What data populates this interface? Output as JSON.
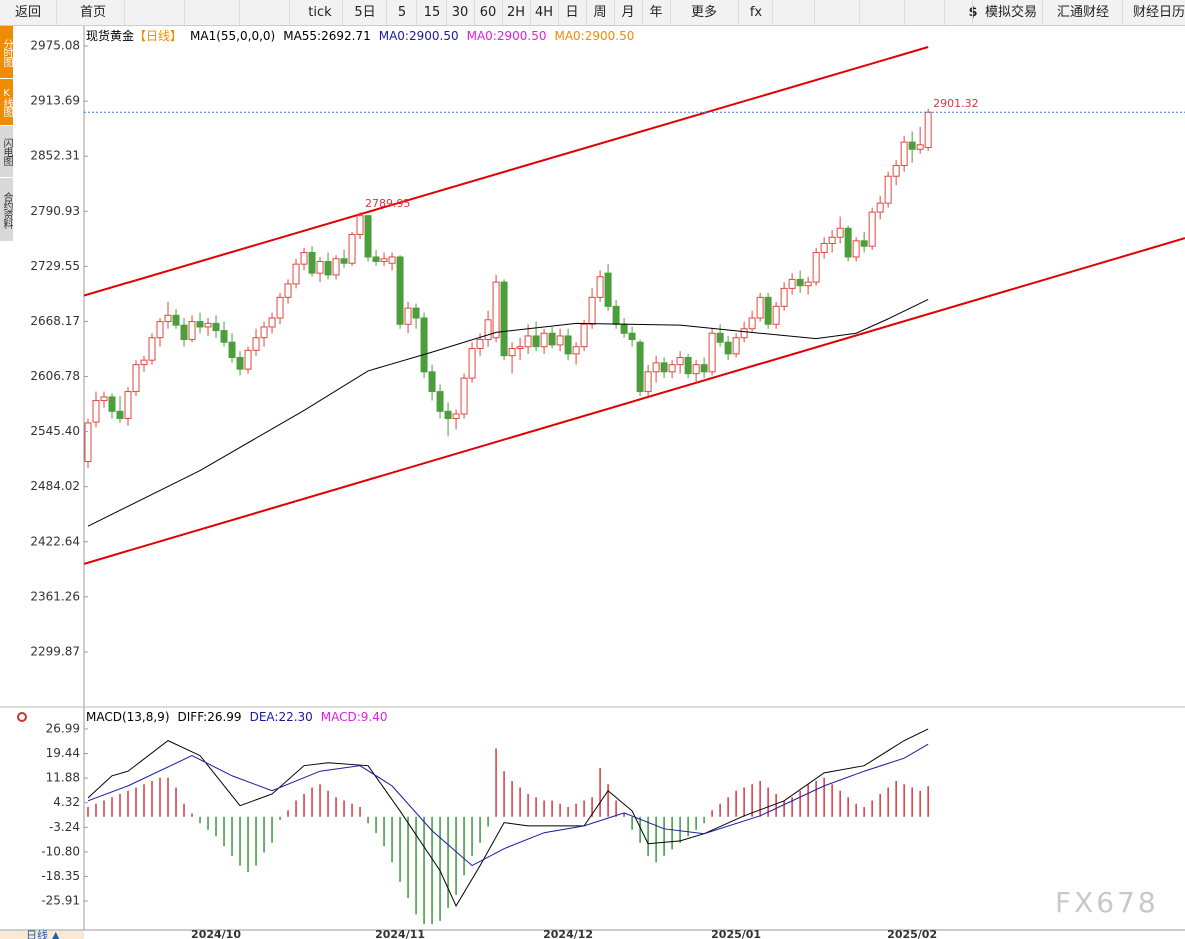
{
  "toolbar": [
    "返回",
    "首页",
    "tick",
    "5日",
    "5",
    "15",
    "30",
    "60",
    "2H",
    "4H",
    "日",
    "周",
    "月",
    "年",
    "更多",
    "fx",
    "$",
    "模拟交易",
    "汇通财经",
    "财经日历"
  ],
  "sidebar": [
    "分时图",
    "K线图",
    "闪电图",
    "合约资料"
  ],
  "footer": {
    "period": "日线 ▲"
  },
  "watermark": "FX678",
  "chart_data": [
    {
      "type": "candlestick",
      "title": "现货黄金",
      "period": "【日线】",
      "legend": [
        {
          "text": "MA1(55,0,0,0)",
          "color": "#000000"
        },
        {
          "text": "MA55:2692.71",
          "color": "#000000"
        },
        {
          "text": "MA0:2900.50",
          "color": "#1a1aa0"
        },
        {
          "text": "MA0:2900.50",
          "color": "#e020e0"
        },
        {
          "text": "MA0:2900.50",
          "color": "#f08c00"
        }
      ],
      "colors": {
        "up": "#e0473f",
        "down": "#4c9e3c"
      },
      "xlim": [
        -0.5,
        137.1
      ],
      "xticks": [
        {
          "value": 16,
          "label": "2024/10"
        },
        {
          "value": 39,
          "label": "2024/11"
        },
        {
          "value": 60,
          "label": "2024/12"
        },
        {
          "value": 81,
          "label": "2025/01"
        },
        {
          "value": 103,
          "label": "2025/02"
        }
      ],
      "ylim": [
        2239.6,
        2997.4
      ],
      "yticks": [
        2975.08,
        2913.69,
        2852.31,
        2790.93,
        2729.55,
        2668.17,
        2606.78,
        {
          "value": 2545.4,
          "label": "2545.40"
        },
        2484.02,
        2422.64,
        2361.26,
        2299.87
      ],
      "ohlc": [
        [
          2512,
          2560,
          2505,
          2555
        ],
        [
          2556,
          2590,
          2550,
          2580
        ],
        [
          2580,
          2590,
          2572,
          2584
        ],
        [
          2584,
          2588,
          2560,
          2568
        ],
        [
          2568,
          2585,
          2555,
          2560
        ],
        [
          2560,
          2595,
          2552,
          2590
        ],
        [
          2590,
          2625,
          2585,
          2620
        ],
        [
          2620,
          2630,
          2612,
          2625
        ],
        [
          2625,
          2655,
          2620,
          2650
        ],
        [
          2650,
          2672,
          2640,
          2668
        ],
        [
          2668,
          2690,
          2660,
          2675
        ],
        [
          2675,
          2682,
          2660,
          2664
        ],
        [
          2664,
          2672,
          2640,
          2648
        ],
        [
          2648,
          2675,
          2645,
          2668
        ],
        [
          2668,
          2678,
          2655,
          2662
        ],
        [
          2662,
          2672,
          2652,
          2666
        ],
        [
          2666,
          2675,
          2650,
          2658
        ],
        [
          2658,
          2668,
          2640,
          2645
        ],
        [
          2645,
          2655,
          2622,
          2628
        ],
        [
          2628,
          2635,
          2608,
          2615
        ],
        [
          2615,
          2640,
          2610,
          2636
        ],
        [
          2636,
          2660,
          2630,
          2650
        ],
        [
          2650,
          2668,
          2640,
          2662
        ],
        [
          2662,
          2678,
          2655,
          2672
        ],
        [
          2672,
          2700,
          2665,
          2695
        ],
        [
          2695,
          2715,
          2688,
          2710
        ],
        [
          2710,
          2738,
          2705,
          2732
        ],
        [
          2732,
          2750,
          2725,
          2745
        ],
        [
          2745,
          2752,
          2718,
          2722
        ],
        [
          2722,
          2740,
          2712,
          2735
        ],
        [
          2735,
          2745,
          2715,
          2720
        ],
        [
          2720,
          2742,
          2715,
          2738
        ],
        [
          2738,
          2748,
          2728,
          2733
        ],
        [
          2733,
          2768,
          2730,
          2765
        ],
        [
          2765,
          2789.95,
          2760,
          2786
        ],
        [
          2786,
          2787,
          2735,
          2740
        ],
        [
          2740,
          2748,
          2730,
          2735
        ],
        [
          2735,
          2745,
          2730,
          2738
        ],
        [
          2733,
          2745,
          2725,
          2740
        ],
        [
          2740,
          2742,
          2660,
          2665
        ],
        [
          2665,
          2690,
          2655,
          2683
        ],
        [
          2683,
          2688,
          2660,
          2672
        ],
        [
          2672,
          2678,
          2605,
          2612
        ],
        [
          2612,
          2620,
          2580,
          2590
        ],
        [
          2590,
          2598,
          2560,
          2568
        ],
        [
          2568,
          2578,
          2540,
          2560
        ],
        [
          2560,
          2570,
          2548,
          2565
        ],
        [
          2565,
          2610,
          2560,
          2605
        ],
        [
          2605,
          2645,
          2600,
          2638
        ],
        [
          2638,
          2655,
          2630,
          2648
        ],
        [
          2648,
          2680,
          2640,
          2670
        ],
        [
          2650,
          2720,
          2645,
          2712
        ],
        [
          2712,
          2715,
          2625,
          2630
        ],
        [
          2630,
          2645,
          2610,
          2638
        ],
        [
          2638,
          2650,
          2625,
          2640
        ],
        [
          2640,
          2665,
          2632,
          2652
        ],
        [
          2652,
          2668,
          2635,
          2640
        ],
        [
          2640,
          2660,
          2632,
          2655
        ],
        [
          2655,
          2662,
          2638,
          2642
        ],
        [
          2642,
          2660,
          2635,
          2652
        ],
        [
          2652,
          2660,
          2625,
          2632
        ],
        [
          2632,
          2645,
          2620,
          2640
        ],
        [
          2640,
          2670,
          2635,
          2665
        ],
        [
          2665,
          2705,
          2660,
          2695
        ],
        [
          2695,
          2725,
          2690,
          2718
        ],
        [
          2722,
          2732,
          2680,
          2685
        ],
        [
          2685,
          2692,
          2660,
          2665
        ],
        [
          2665,
          2672,
          2650,
          2655
        ],
        [
          2655,
          2662,
          2640,
          2648
        ],
        [
          2645,
          2648,
          2585,
          2590
        ],
        [
          2590,
          2620,
          2585,
          2612
        ],
        [
          2612,
          2630,
          2600,
          2622
        ],
        [
          2622,
          2628,
          2605,
          2612
        ],
        [
          2612,
          2625,
          2605,
          2620
        ],
        [
          2620,
          2635,
          2610,
          2628
        ],
        [
          2628,
          2632,
          2605,
          2610
        ],
        [
          2610,
          2625,
          2600,
          2620
        ],
        [
          2620,
          2628,
          2605,
          2612
        ],
        [
          2612,
          2660,
          2608,
          2655
        ],
        [
          2655,
          2665,
          2640,
          2645
        ],
        [
          2645,
          2652,
          2625,
          2632
        ],
        [
          2632,
          2655,
          2628,
          2650
        ],
        [
          2650,
          2668,
          2645,
          2660
        ],
        [
          2660,
          2680,
          2655,
          2672
        ],
        [
          2672,
          2700,
          2668,
          2695
        ],
        [
          2695,
          2700,
          2660,
          2665
        ],
        [
          2665,
          2690,
          2660,
          2685
        ],
        [
          2685,
          2712,
          2680,
          2705
        ],
        [
          2705,
          2722,
          2698,
          2715
        ],
        [
          2715,
          2725,
          2700,
          2708
        ],
        [
          2708,
          2718,
          2698,
          2712
        ],
        [
          2712,
          2750,
          2708,
          2745
        ],
        [
          2745,
          2762,
          2738,
          2755
        ],
        [
          2755,
          2770,
          2745,
          2762
        ],
        [
          2762,
          2785,
          2755,
          2772
        ],
        [
          2772,
          2775,
          2735,
          2740
        ],
        [
          2740,
          2762,
          2735,
          2758
        ],
        [
          2758,
          2768,
          2745,
          2752
        ],
        [
          2752,
          2795,
          2748,
          2790
        ],
        [
          2790,
          2808,
          2782,
          2800
        ],
        [
          2800,
          2835,
          2795,
          2830
        ],
        [
          2830,
          2848,
          2820,
          2842
        ],
        [
          2842,
          2875,
          2835,
          2868
        ],
        [
          2868,
          2880,
          2845,
          2860
        ],
        [
          2860,
          2885,
          2855,
          2865
        ],
        [
          2862,
          2905,
          2858,
          2901.32
        ]
      ],
      "lines": [
        {
          "color": "#000000",
          "x": [
            0,
            14,
            27,
            35,
            43,
            51,
            61,
            74,
            84,
            91,
            96,
            100,
            105
          ],
          "values": [
            2440,
            2502,
            2569,
            2613,
            2634,
            2656,
            2666,
            2664,
            2655,
            2649,
            2655,
            2671,
            2692.71
          ]
        }
      ],
      "trendlines": [
        {
          "color": "#e00000",
          "x": [
            -0.5,
            105
          ],
          "values": [
            2697,
            2974
          ]
        },
        {
          "color": "#e00000",
          "x": [
            -0.5,
            137.1
          ],
          "values": [
            2398,
            2761
          ]
        }
      ],
      "annotations": [
        {
          "index": 34,
          "value": 2789.95
        },
        {
          "index": 105,
          "value": 2901.32
        }
      ]
    },
    {
      "type": "macd",
      "title": "MACD(13,8,9)",
      "legend": [
        {
          "text": "DIFF:26.99",
          "color": "#000000"
        },
        {
          "text": "DEA:22.30",
          "color": "#1a1aa0"
        },
        {
          "text": "MACD:9.40",
          "color": "#e020e0"
        }
      ],
      "colors": {
        "up": "#d9363e",
        "down": "#3a9a3a"
      },
      "ylim": [
        -34.8,
        32.2
      ],
      "yticks": [
        26.99,
        19.44,
        11.88,
        4.32,
        -3.24,
        {
          "value": -10.8,
          "label": "-10.80"
        },
        -18.35,
        -25.91
      ],
      "histogram": [
        3,
        4,
        5,
        6,
        7,
        8,
        9,
        10,
        11,
        12,
        12,
        9,
        4,
        1,
        -2,
        -4,
        -6,
        -9,
        -12,
        -15,
        -17,
        -15,
        -11,
        -8,
        -1,
        2,
        5,
        7,
        9,
        10,
        8,
        6,
        5,
        4,
        3,
        -2,
        -5,
        -9,
        -14,
        -20,
        -25,
        -30,
        -33,
        -33,
        -32,
        -28,
        -24,
        -18,
        -12,
        -8,
        -3,
        21,
        14,
        11,
        9,
        7,
        6,
        5,
        5,
        4,
        3,
        4,
        5,
        6,
        15,
        10,
        5,
        1,
        -4,
        -8,
        -12,
        -14,
        -12,
        -10,
        -8,
        -6,
        -4,
        -2,
        2,
        4,
        6,
        8,
        9,
        10,
        11,
        9,
        7,
        5,
        6,
        8,
        10,
        11,
        12,
        10,
        8,
        6,
        4,
        3,
        5,
        7,
        9,
        11,
        10,
        9,
        8,
        9.4
      ],
      "lines": [
        {
          "color": "#000000",
          "x": [
            0,
            3,
            5,
            10,
            14,
            19,
            23,
            27,
            30,
            35,
            39,
            44,
            46,
            49,
            52,
            55,
            62,
            65,
            68,
            70,
            74,
            77,
            82,
            87,
            92,
            97,
            102,
            105
          ],
          "values": [
            5.8,
            12.6,
            14,
            23.4,
            18.8,
            3.4,
            7,
            15.7,
            16.6,
            15.7,
            1.8,
            -16.6,
            -27.4,
            -15,
            -1.8,
            -2.8,
            -2.8,
            8,
            1.8,
            -8.3,
            -7.4,
            -5.2,
            0.3,
            4.9,
            13.5,
            15.7,
            23.4,
            26.99
          ]
        },
        {
          "color": "#1a1aa0",
          "x": [
            0,
            5,
            13,
            18,
            23,
            29,
            34,
            38,
            43,
            48,
            52,
            57,
            62,
            67,
            72,
            77,
            84,
            92,
            97,
            102,
            105
          ],
          "values": [
            4.9,
            9.5,
            18.8,
            12.6,
            8,
            14,
            15.7,
            9.5,
            -4.3,
            -15,
            -9.8,
            -4.9,
            -2.8,
            1.2,
            -3.7,
            -5.2,
            0.3,
            9.5,
            14,
            18,
            22.3
          ]
        }
      ]
    }
  ]
}
